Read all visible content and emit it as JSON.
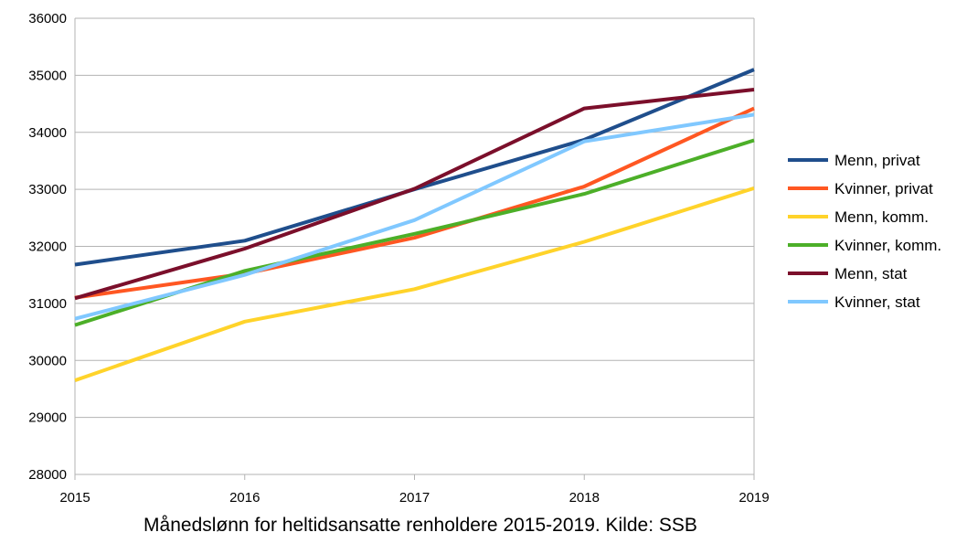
{
  "caption": "Månedslønn for heltidsansatte renholdere 2015-2019. Kilde: SSB",
  "chart_data": {
    "type": "line",
    "title": "",
    "xlabel": "",
    "ylabel": "",
    "x": [
      "2015",
      "2016",
      "2017",
      "2018",
      "2019"
    ],
    "y_ticks": [
      "28000",
      "29000",
      "30000",
      "31000",
      "32000",
      "33000",
      "34000",
      "35000",
      "36000"
    ],
    "ylim": [
      28000,
      36000
    ],
    "grid": true,
    "legend_position": "right",
    "series": [
      {
        "name": "Menn, privat",
        "color": "#1f4e8c",
        "values": [
          31680,
          32100,
          33000,
          33870,
          35100
        ]
      },
      {
        "name": "Kvinner, privat",
        "color": "#ff5722",
        "values": [
          31100,
          31520,
          32150,
          33050,
          34420
        ]
      },
      {
        "name": "Menn, komm.",
        "color": "#ffd32a",
        "values": [
          29650,
          30680,
          31250,
          32080,
          33020
        ]
      },
      {
        "name": "Kvinner, komm.",
        "color": "#4caf28",
        "values": [
          30620,
          31570,
          32220,
          32920,
          33860
        ]
      },
      {
        "name": "Menn, stat",
        "color": "#7b0f2b",
        "values": [
          31090,
          31960,
          33010,
          34420,
          34750
        ]
      },
      {
        "name": "Kvinner, stat",
        "color": "#80c8ff",
        "values": [
          30730,
          31500,
          32460,
          33840,
          34310
        ]
      }
    ]
  }
}
